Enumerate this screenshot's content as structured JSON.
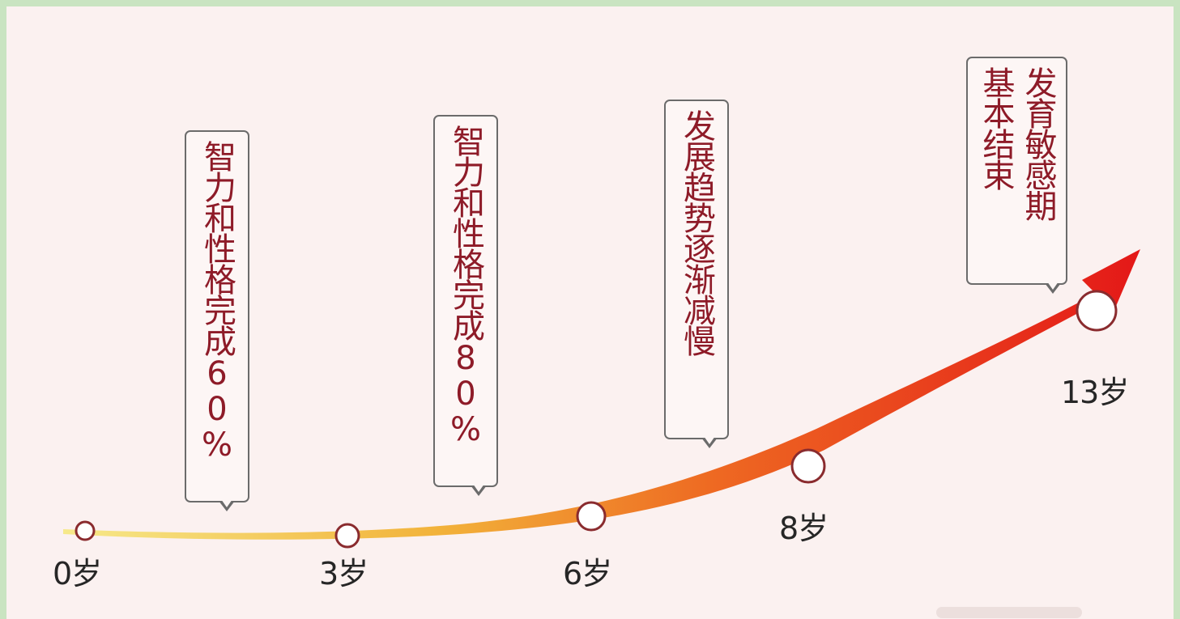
{
  "timeline": {
    "stages": [
      {
        "age_label": "0岁"
      },
      {
        "age_label": "3岁",
        "note_columns": [
          "智力和性格完成60%"
        ]
      },
      {
        "age_label": "6岁",
        "note_columns": [
          "智力和性格完成80%"
        ]
      },
      {
        "age_label": "8岁",
        "note_columns": [
          "发展趋势逐渐减慢"
        ]
      },
      {
        "age_label": "13岁",
        "note_columns": [
          "发育敏感期",
          "基本结束"
        ]
      }
    ],
    "colors": {
      "curve_start": "#f6e36e",
      "curve_mid": "#f08a28",
      "curve_end": "#e61b1b",
      "node_fill": "#ffffff",
      "text": "#8e1b28"
    }
  }
}
